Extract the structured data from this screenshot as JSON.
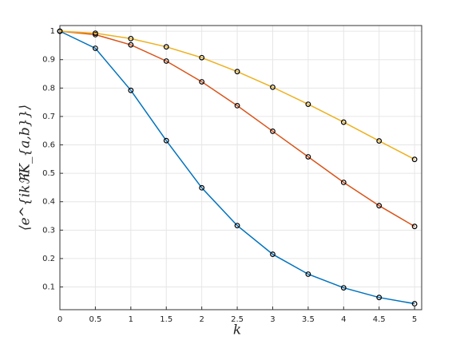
{
  "chart_data": {
    "type": "line",
    "x_label": "k",
    "y_label": "⟨e^{ikℜK_{a,b}}⟩",
    "x": [
      0,
      0.5,
      1,
      1.5,
      2,
      2.5,
      3,
      3.5,
      4,
      4.5,
      5
    ],
    "series": [
      {
        "color": "#0072BD",
        "values": [
          1,
          0.94,
          0.792,
          0.615,
          0.449,
          0.316,
          0.215,
          0.145,
          0.097,
          0.063,
          0.041
        ]
      },
      {
        "color": "#D95319",
        "values": [
          1,
          0.988,
          0.952,
          0.895,
          0.822,
          0.738,
          0.648,
          0.558,
          0.468,
          0.386,
          0.313
        ]
      },
      {
        "color": "#EDB120",
        "values": [
          1,
          0.993,
          0.974,
          0.945,
          0.907,
          0.858,
          0.803,
          0.743,
          0.68,
          0.614,
          0.549
        ]
      }
    ],
    "marker_color": "#000000",
    "xlim": [
      0,
      5.1
    ],
    "ylim": [
      0.02,
      1.02
    ],
    "xticks": [
      0,
      0.5,
      1,
      1.5,
      2,
      2.5,
      3,
      3.5,
      4,
      4.5,
      5
    ],
    "yticks": [
      0.1,
      0.2,
      0.3,
      0.4,
      0.5,
      0.6,
      0.7,
      0.8,
      0.9,
      1
    ],
    "grid": true
  }
}
